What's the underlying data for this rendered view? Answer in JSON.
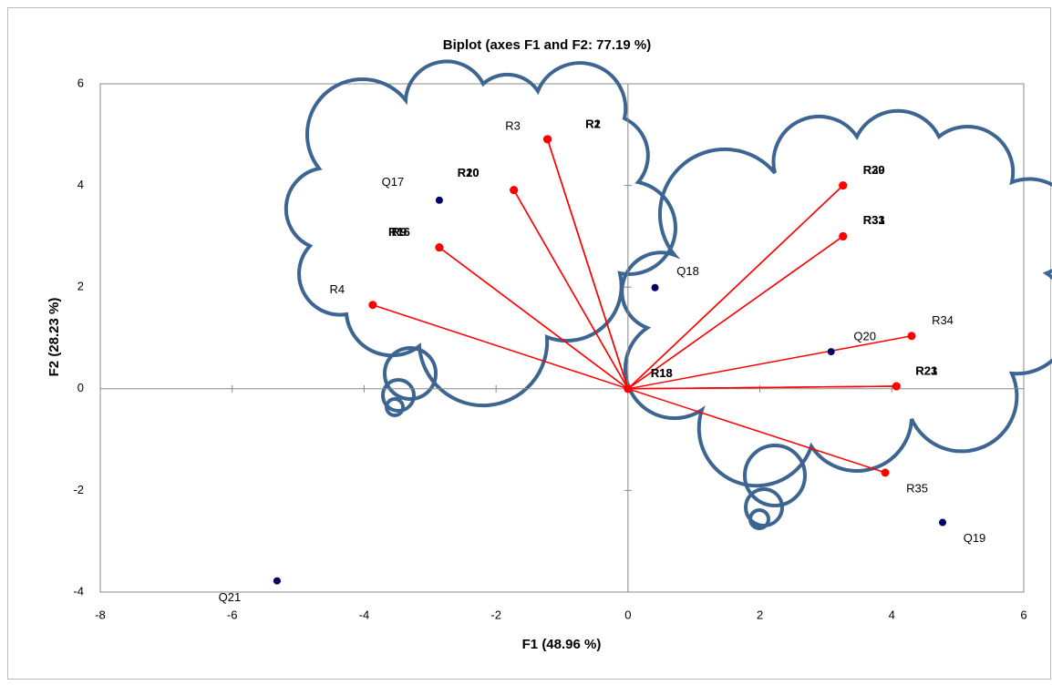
{
  "chart_data": {
    "type": "biplot",
    "title": "Biplot (axes F1 and F2: 77.19 %)",
    "x_label": "F1 (48.96 %)",
    "y_label": "F2 (28.23 %)",
    "xlim": [
      -8,
      6
    ],
    "xticks": [
      -8,
      -6,
      -4,
      -2,
      0,
      2,
      4,
      6
    ],
    "ylim": [
      -4,
      6
    ],
    "yticks": [
      -4,
      -2,
      0,
      2,
      4,
      6
    ],
    "variables": {
      "color": "#ff0000",
      "labels": [
        "R3",
        "R1",
        "R2",
        "R10",
        "R20",
        "R16",
        "R9",
        "R4",
        "R29",
        "R30",
        "R31",
        "R33",
        "R34",
        "R21",
        "R23",
        "R35",
        "R13",
        "R18"
      ],
      "x": [
        -1.22,
        -1.22,
        -1.22,
        -1.73,
        -1.73,
        -2.86,
        -2.86,
        -3.87,
        3.26,
        3.26,
        3.26,
        3.26,
        4.3,
        4.07,
        4.07,
        3.9,
        0,
        0
      ],
      "y": [
        4.91,
        4.91,
        4.91,
        3.91,
        3.91,
        2.78,
        2.78,
        1.65,
        4.0,
        4.0,
        3.0,
        3.0,
        1.04,
        0.05,
        0.05,
        -1.65,
        0,
        0
      ]
    },
    "observations": {
      "color": "#000066",
      "labels": [
        "Q17",
        "Q18",
        "Q20",
        "Q19",
        "Q21"
      ],
      "x": [
        -2.86,
        0.41,
        3.08,
        4.77,
        -5.32
      ],
      "y": [
        3.71,
        1.99,
        0.73,
        -2.63,
        -3.78
      ]
    }
  }
}
